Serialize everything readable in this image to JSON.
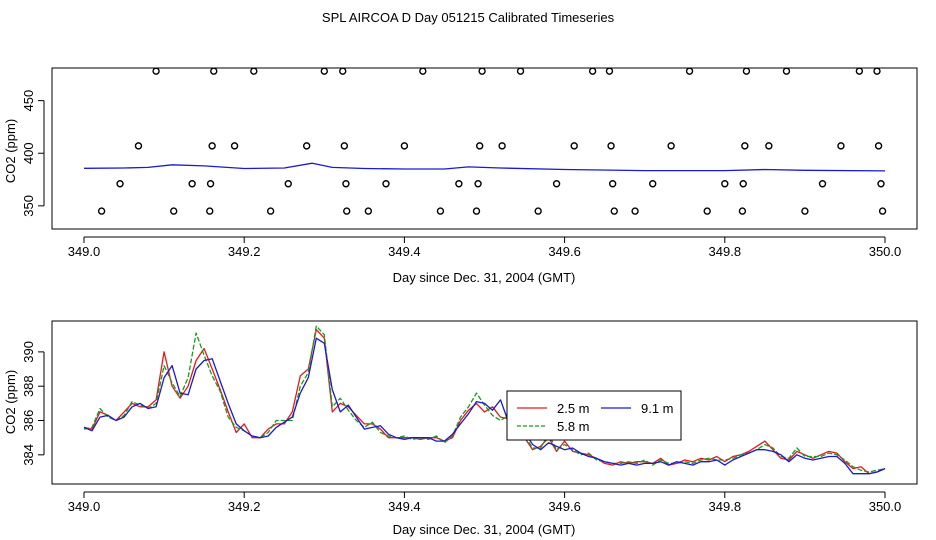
{
  "title": "SPL AIRCOA D  Day 051215  Calibrated Timeseries",
  "colors": {
    "red": "#e41a1c",
    "green": "#1a9a1a",
    "blue": "#1a1ad0",
    "axis": "#000000"
  },
  "chart_data": [
    {
      "type": "scatter+line",
      "xlabel": "Day since Dec. 31, 2004 (GMT)",
      "ylabel": "CO2 (ppm)",
      "xlim": [
        349.0,
        350.0
      ],
      "ylim": [
        328,
        481
      ],
      "xticks": [
        "349.0",
        "349.2",
        "349.4",
        "349.6",
        "349.8",
        "350.0"
      ],
      "xtick_values": [
        349.0,
        349.2,
        349.4,
        349.6,
        349.8,
        350.0
      ],
      "yticks": [
        "350",
        "400",
        "450"
      ],
      "ytick_values": [
        350,
        400,
        450
      ],
      "points": [
        [
          349.022,
          345
        ],
        [
          349.045,
          371
        ],
        [
          349.068,
          407
        ],
        [
          349.09,
          478
        ],
        [
          349.112,
          345
        ],
        [
          349.135,
          371
        ],
        [
          349.157,
          345
        ],
        [
          349.158,
          371
        ],
        [
          349.16,
          407
        ],
        [
          349.162,
          478
        ],
        [
          349.188,
          407
        ],
        [
          349.212,
          478
        ],
        [
          349.233,
          345
        ],
        [
          349.255,
          371
        ],
        [
          349.278,
          407
        ],
        [
          349.3,
          478
        ],
        [
          349.323,
          478
        ],
        [
          349.325,
          407
        ],
        [
          349.327,
          371
        ],
        [
          349.328,
          345
        ],
        [
          349.355,
          345
        ],
        [
          349.377,
          371
        ],
        [
          349.4,
          407
        ],
        [
          349.423,
          478
        ],
        [
          349.445,
          345
        ],
        [
          349.468,
          371
        ],
        [
          349.49,
          345
        ],
        [
          349.492,
          371
        ],
        [
          349.494,
          407
        ],
        [
          349.497,
          478
        ],
        [
          349.522,
          407
        ],
        [
          349.545,
          478
        ],
        [
          349.567,
          345
        ],
        [
          349.59,
          371
        ],
        [
          349.612,
          407
        ],
        [
          349.635,
          478
        ],
        [
          349.656,
          478
        ],
        [
          349.658,
          407
        ],
        [
          349.66,
          371
        ],
        [
          349.662,
          345
        ],
        [
          349.688,
          345
        ],
        [
          349.71,
          371
        ],
        [
          349.733,
          407
        ],
        [
          349.756,
          478
        ],
        [
          349.778,
          345
        ],
        [
          349.8,
          371
        ],
        [
          349.822,
          345
        ],
        [
          349.823,
          371
        ],
        [
          349.825,
          407
        ],
        [
          349.827,
          478
        ],
        [
          349.855,
          407
        ],
        [
          349.877,
          478
        ],
        [
          349.9,
          345
        ],
        [
          349.922,
          371
        ],
        [
          349.945,
          407
        ],
        [
          349.968,
          478
        ],
        [
          349.99,
          478
        ],
        [
          349.992,
          407
        ],
        [
          349.995,
          371
        ],
        [
          349.997,
          345
        ]
      ],
      "series": [
        {
          "name": "baseline",
          "color": "blue",
          "x": [
            349.0,
            349.05,
            349.08,
            349.11,
            349.15,
            349.2,
            349.25,
            349.285,
            349.31,
            349.35,
            349.4,
            349.45,
            349.48,
            349.52,
            349.6,
            349.7,
            349.8,
            349.85,
            349.9,
            350.0
          ],
          "y": [
            385.7,
            386.0,
            386.5,
            389.0,
            388.0,
            385.5,
            386.0,
            390.5,
            386.5,
            385.5,
            385.0,
            385.0,
            387.0,
            386.0,
            384.5,
            383.5,
            383.5,
            384.5,
            383.8,
            383.2
          ]
        }
      ]
    },
    {
      "type": "line",
      "xlabel": "Day since Dec. 31, 2004 (GMT)",
      "ylabel": "CO2 (ppm)",
      "xlim": [
        349.0,
        350.0
      ],
      "ylim": [
        382.3,
        391.8
      ],
      "xticks": [
        "349.0",
        "349.2",
        "349.4",
        "349.6",
        "349.8",
        "350.0"
      ],
      "xtick_values": [
        349.0,
        349.2,
        349.4,
        349.6,
        349.8,
        350.0
      ],
      "yticks": [
        "384",
        "386",
        "388",
        "390"
      ],
      "ytick_values": [
        384,
        386,
        388,
        390
      ],
      "legend": {
        "placement": "center-right",
        "entries": [
          "2.5 m",
          "5.8 m",
          "9.1 m"
        ]
      },
      "series": [
        {
          "name": "2.5 m",
          "color": "red",
          "x": [
            349.0,
            349.01,
            349.02,
            349.03,
            349.04,
            349.05,
            349.06,
            349.07,
            349.08,
            349.09,
            349.1,
            349.11,
            349.12,
            349.13,
            349.14,
            349.15,
            349.16,
            349.17,
            349.18,
            349.19,
            349.2,
            349.21,
            349.22,
            349.23,
            349.24,
            349.25,
            349.26,
            349.27,
            349.28,
            349.29,
            349.3,
            349.31,
            349.32,
            349.33,
            349.34,
            349.35,
            349.36,
            349.37,
            349.38,
            349.39,
            349.4,
            349.41,
            349.42,
            349.43,
            349.44,
            349.45,
            349.46,
            349.47,
            349.48,
            349.49,
            349.5,
            349.51,
            349.52,
            349.53,
            349.54,
            349.55,
            349.56,
            349.57,
            349.58,
            349.59,
            349.6,
            349.61,
            349.62,
            349.63,
            349.64,
            349.65,
            349.66,
            349.67,
            349.68,
            349.69,
            349.7,
            349.71,
            349.72,
            349.73,
            349.74,
            349.75,
            349.76,
            349.77,
            349.78,
            349.79,
            349.8,
            349.81,
            349.82,
            349.83,
            349.84,
            349.85,
            349.86,
            349.87,
            349.88,
            349.89,
            349.9,
            349.91,
            349.92,
            349.93,
            349.94,
            349.95,
            349.96,
            349.97,
            349.98,
            349.99,
            350.0
          ],
          "y": [
            385.6,
            385.5,
            386.5,
            386.3,
            386.0,
            386.5,
            387.0,
            386.8,
            386.8,
            387.2,
            390.0,
            388.0,
            387.3,
            388.0,
            389.5,
            390.2,
            389.0,
            387.8,
            386.5,
            385.3,
            385.8,
            385.0,
            385.0,
            385.5,
            385.8,
            385.8,
            386.5,
            388.6,
            389.0,
            391.3,
            390.8,
            386.5,
            387.0,
            386.8,
            386.3,
            385.8,
            385.8,
            385.5,
            385.0,
            385.0,
            385.0,
            385.0,
            384.9,
            385.0,
            385.0,
            384.8,
            385.0,
            386.0,
            386.6,
            387.0,
            386.5,
            386.8,
            386.2,
            386.1,
            385.7,
            385.0,
            384.3,
            384.5,
            385.0,
            384.2,
            384.8,
            384.2,
            384.1,
            384.0,
            383.8,
            383.5,
            383.4,
            383.6,
            383.5,
            383.6,
            383.6,
            383.5,
            383.8,
            383.4,
            383.5,
            383.7,
            383.6,
            383.8,
            383.7,
            383.9,
            383.6,
            383.9,
            384.0,
            384.2,
            384.5,
            384.8,
            384.3,
            383.8,
            383.7,
            384.2,
            384.0,
            383.8,
            384.0,
            384.2,
            384.1,
            383.6,
            383.2,
            383.3,
            382.9,
            383.0,
            383.2
          ]
        },
        {
          "name": "5.8 m",
          "color": "green",
          "x": [
            349.0,
            349.01,
            349.02,
            349.03,
            349.04,
            349.05,
            349.06,
            349.07,
            349.08,
            349.09,
            349.1,
            349.11,
            349.12,
            349.13,
            349.14,
            349.15,
            349.16,
            349.17,
            349.18,
            349.19,
            349.2,
            349.21,
            349.22,
            349.23,
            349.24,
            349.25,
            349.26,
            349.27,
            349.28,
            349.29,
            349.3,
            349.31,
            349.32,
            349.33,
            349.34,
            349.35,
            349.36,
            349.37,
            349.38,
            349.39,
            349.4,
            349.41,
            349.42,
            349.43,
            349.44,
            349.45,
            349.46,
            349.47,
            349.48,
            349.49,
            349.5,
            349.51,
            349.52,
            349.53,
            349.54,
            349.55,
            349.56,
            349.57,
            349.58,
            349.59,
            349.6,
            349.61,
            349.62,
            349.63,
            349.64,
            349.65,
            349.66,
            349.67,
            349.68,
            349.69,
            349.7,
            349.71,
            349.72,
            349.73,
            349.74,
            349.75,
            349.76,
            349.77,
            349.78,
            349.79,
            349.8,
            349.81,
            349.82,
            349.83,
            349.84,
            349.85,
            349.86,
            349.87,
            349.88,
            349.89,
            349.9,
            349.91,
            349.92,
            349.93,
            349.94,
            349.95,
            349.96,
            349.97,
            349.98,
            349.99,
            350.0
          ],
          "y": [
            385.5,
            385.6,
            386.7,
            386.2,
            386.0,
            386.3,
            387.1,
            386.9,
            386.7,
            387.0,
            389.2,
            388.2,
            387.4,
            388.5,
            391.1,
            389.8,
            388.6,
            387.7,
            386.2,
            385.6,
            385.4,
            385.1,
            385.0,
            385.3,
            386.0,
            386.0,
            386.0,
            388.0,
            388.8,
            391.5,
            391.0,
            386.8,
            387.3,
            386.6,
            386.0,
            385.6,
            385.9,
            385.3,
            385.1,
            385.0,
            385.1,
            384.9,
            385.0,
            384.9,
            385.1,
            384.7,
            385.1,
            386.2,
            386.8,
            387.6,
            386.9,
            386.3,
            386.0,
            386.3,
            385.6,
            385.1,
            384.4,
            384.4,
            385.2,
            384.3,
            384.6,
            384.3,
            384.0,
            384.1,
            383.7,
            383.6,
            383.5,
            383.5,
            383.6,
            383.5,
            383.7,
            383.4,
            383.7,
            383.5,
            383.5,
            383.6,
            383.5,
            383.7,
            383.8,
            383.7,
            383.7,
            383.8,
            384.0,
            384.1,
            384.3,
            384.6,
            384.4,
            383.9,
            383.8,
            384.4,
            383.9,
            383.9,
            383.9,
            384.1,
            384.0,
            383.7,
            383.3,
            383.1,
            383.0,
            383.1,
            383.2
          ]
        },
        {
          "name": "9.1 m",
          "color": "blue",
          "x": [
            349.0,
            349.01,
            349.02,
            349.03,
            349.04,
            349.05,
            349.06,
            349.07,
            349.08,
            349.09,
            349.1,
            349.11,
            349.12,
            349.13,
            349.14,
            349.15,
            349.16,
            349.17,
            349.18,
            349.19,
            349.2,
            349.21,
            349.22,
            349.23,
            349.24,
            349.25,
            349.26,
            349.27,
            349.28,
            349.29,
            349.3,
            349.31,
            349.32,
            349.33,
            349.34,
            349.35,
            349.36,
            349.37,
            349.38,
            349.39,
            349.4,
            349.41,
            349.42,
            349.43,
            349.44,
            349.45,
            349.46,
            349.47,
            349.48,
            349.49,
            349.5,
            349.51,
            349.52,
            349.53,
            349.54,
            349.55,
            349.56,
            349.57,
            349.58,
            349.59,
            349.6,
            349.61,
            349.62,
            349.63,
            349.64,
            349.65,
            349.66,
            349.67,
            349.68,
            349.69,
            349.7,
            349.71,
            349.72,
            349.73,
            349.74,
            349.75,
            349.76,
            349.77,
            349.78,
            349.79,
            349.8,
            349.81,
            349.82,
            349.83,
            349.84,
            349.85,
            349.86,
            349.87,
            349.88,
            349.89,
            349.9,
            349.91,
            349.92,
            349.93,
            349.94,
            349.95,
            349.96,
            349.97,
            349.98,
            349.99,
            350.0
          ],
          "y": [
            385.6,
            385.4,
            386.2,
            386.3,
            386.0,
            386.2,
            386.8,
            387.0,
            386.7,
            386.8,
            388.5,
            389.2,
            387.6,
            387.5,
            389.0,
            389.5,
            389.6,
            388.3,
            387.0,
            385.8,
            385.4,
            385.1,
            385.0,
            385.1,
            385.6,
            385.9,
            386.2,
            387.6,
            388.5,
            390.8,
            390.5,
            387.8,
            386.5,
            386.9,
            386.2,
            385.5,
            385.6,
            385.7,
            385.2,
            385.0,
            384.9,
            385.0,
            385.0,
            385.0,
            384.8,
            384.8,
            385.2,
            385.8,
            386.4,
            387.1,
            387.0,
            386.6,
            387.2,
            385.9,
            386.0,
            385.3,
            384.6,
            384.3,
            384.7,
            384.5,
            384.3,
            384.4,
            384.1,
            383.9,
            383.8,
            383.6,
            383.5,
            383.4,
            383.5,
            383.4,
            383.5,
            383.5,
            383.6,
            383.4,
            383.6,
            383.5,
            383.4,
            383.6,
            383.6,
            383.7,
            383.4,
            383.7,
            383.9,
            384.1,
            384.3,
            384.3,
            384.2,
            384.0,
            383.6,
            384.0,
            383.8,
            383.7,
            383.8,
            383.9,
            383.9,
            383.5,
            382.9,
            382.9,
            382.9,
            383.0,
            383.2
          ]
        }
      ]
    }
  ]
}
